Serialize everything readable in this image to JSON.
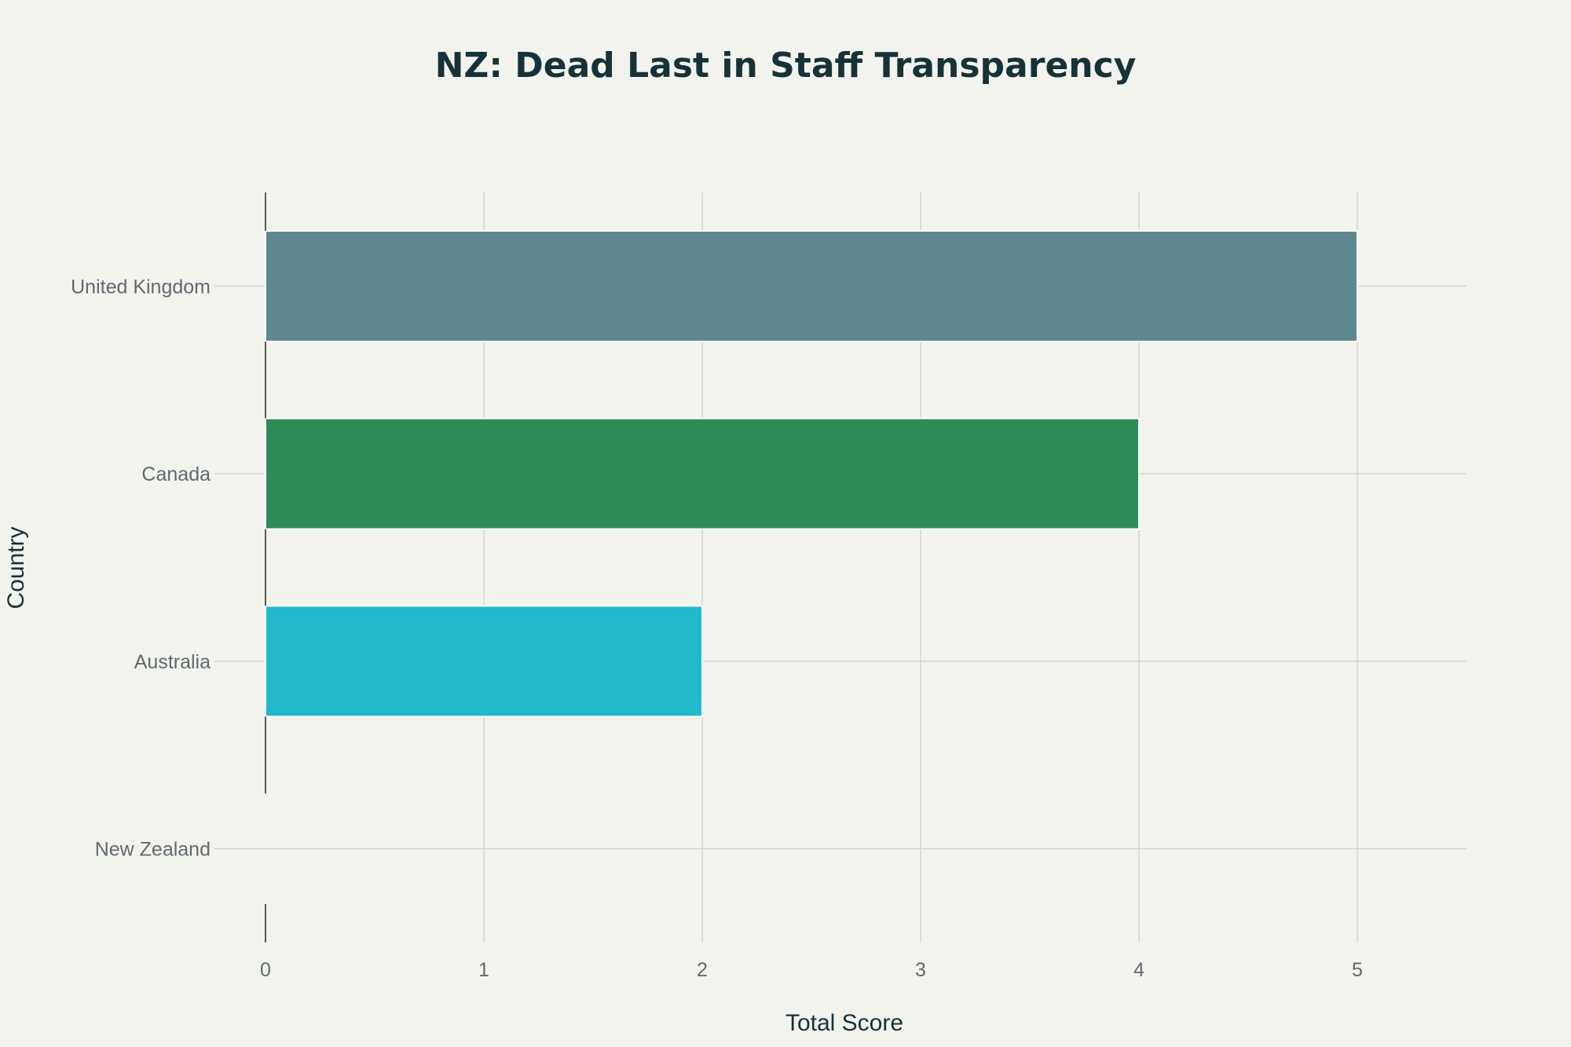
{
  "chart_data": {
    "type": "bar",
    "orientation": "horizontal",
    "title": "NZ: Dead Last in Staff Transparency",
    "xlabel": "Total Score",
    "ylabel": "Country",
    "categories": [
      "United Kingdom",
      "Canada",
      "Australia",
      "New Zealand"
    ],
    "values": [
      5,
      4,
      2,
      0
    ],
    "colors": [
      "#5e888d",
      "#2e8b57",
      "#21b8cc",
      "#d9d9d9"
    ],
    "xlim": [
      0,
      5.5
    ],
    "xticks": [
      0,
      1,
      2,
      3,
      4,
      5
    ],
    "grid": true,
    "legend": false
  }
}
